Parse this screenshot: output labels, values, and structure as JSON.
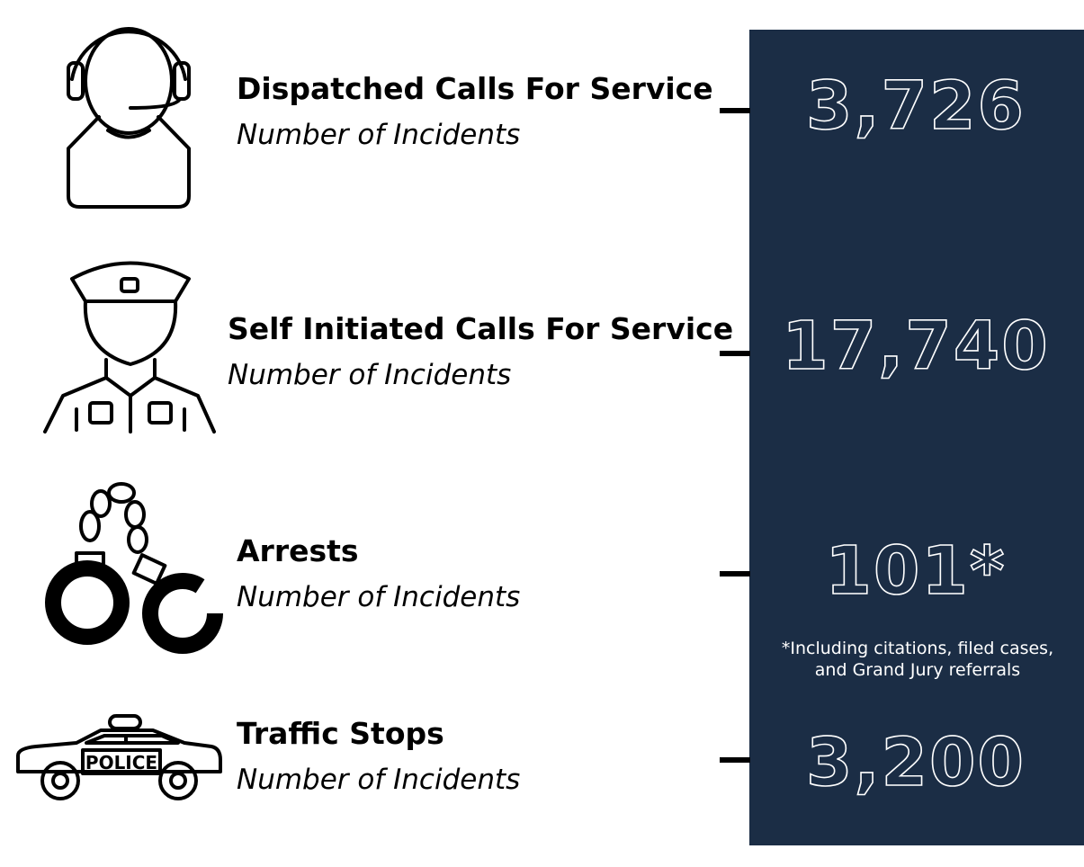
{
  "items": [
    {
      "title": "Dispatched Calls For Service",
      "subtitle": "Number of Incidents",
      "value": "3,726"
    },
    {
      "title": "Self Initiated Calls For Service",
      "subtitle": "Number of Incidents",
      "value": "17,740"
    },
    {
      "title": "Arrests",
      "subtitle": "Number of Incidents",
      "value": "101*"
    },
    {
      "title": "Traffic Stops",
      "subtitle": "Number of Incidents",
      "value": "3,200"
    }
  ],
  "footnote": [
    "*Including citations, filed cases,",
    "and Grand Jury referrals"
  ],
  "car_label": "POLICE"
}
